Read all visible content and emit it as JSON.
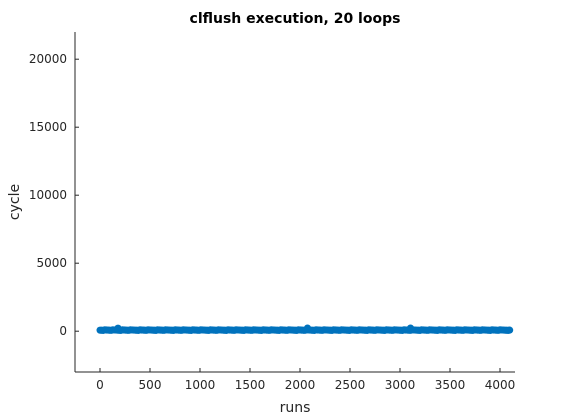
{
  "chart_data": {
    "type": "scatter",
    "title": "clflush execution, 20 loops",
    "xlabel": "runs",
    "ylabel": "cycle",
    "xlim": [
      -250,
      4150
    ],
    "ylim": [
      -3000,
      22000
    ],
    "xticks": [
      0,
      500,
      1000,
      1500,
      2000,
      2500,
      3000,
      3500,
      4000
    ],
    "yticks": [
      0,
      5000,
      10000,
      15000,
      20000
    ],
    "grid": false,
    "series": [
      {
        "color": "#0072BD",
        "marker": "circle",
        "x_range": [
          1,
          4096
        ],
        "typical_value": 80,
        "outliers": [
          {
            "x": 180,
            "y": 220
          },
          {
            "x": 2075,
            "y": 230
          },
          {
            "x": 3105,
            "y": 230
          }
        ]
      }
    ]
  }
}
